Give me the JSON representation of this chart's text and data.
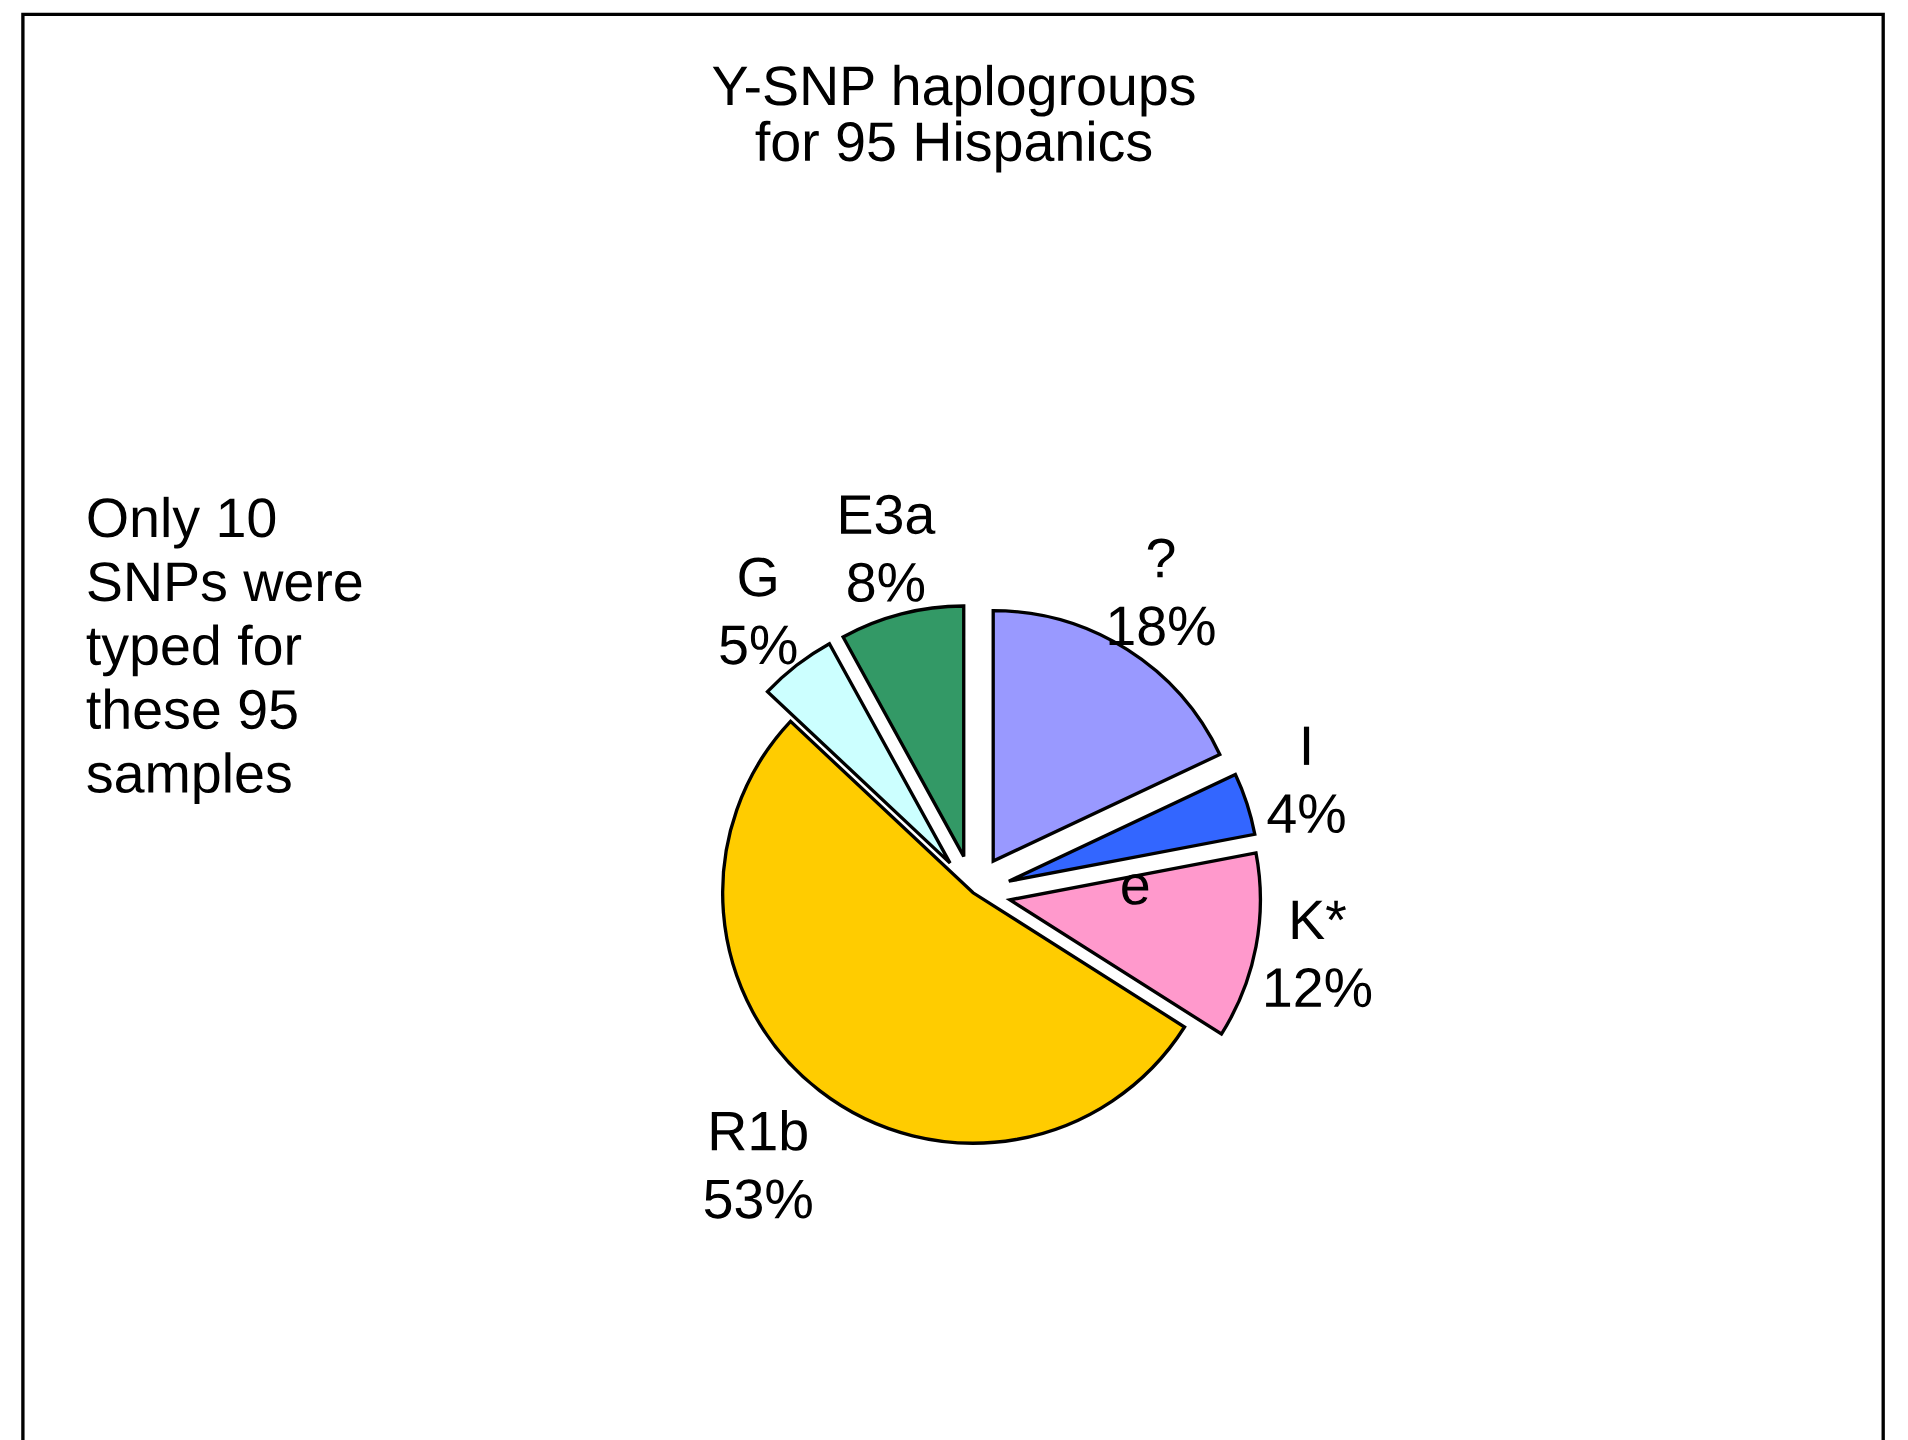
{
  "chart_data": {
    "type": "pie",
    "title": "Y-SNP haplogroups\nfor 95 Hispanics",
    "categories": [
      "?",
      "I",
      "K*",
      "R1b",
      "G",
      "E3a"
    ],
    "values": [
      18,
      4,
      12,
      53,
      5,
      8
    ],
    "colors": [
      "#9999ff",
      "#3366ff",
      "#ff99cc",
      "#ffcc00",
      "#ccffff",
      "#339966"
    ],
    "value_labels": [
      "18%",
      "4%",
      "12%",
      "53%",
      "5%",
      "8%"
    ],
    "annotations": [
      "Only 10\nSNPs were\ntyped for\nthese 95\nsamples",
      "e"
    ]
  }
}
